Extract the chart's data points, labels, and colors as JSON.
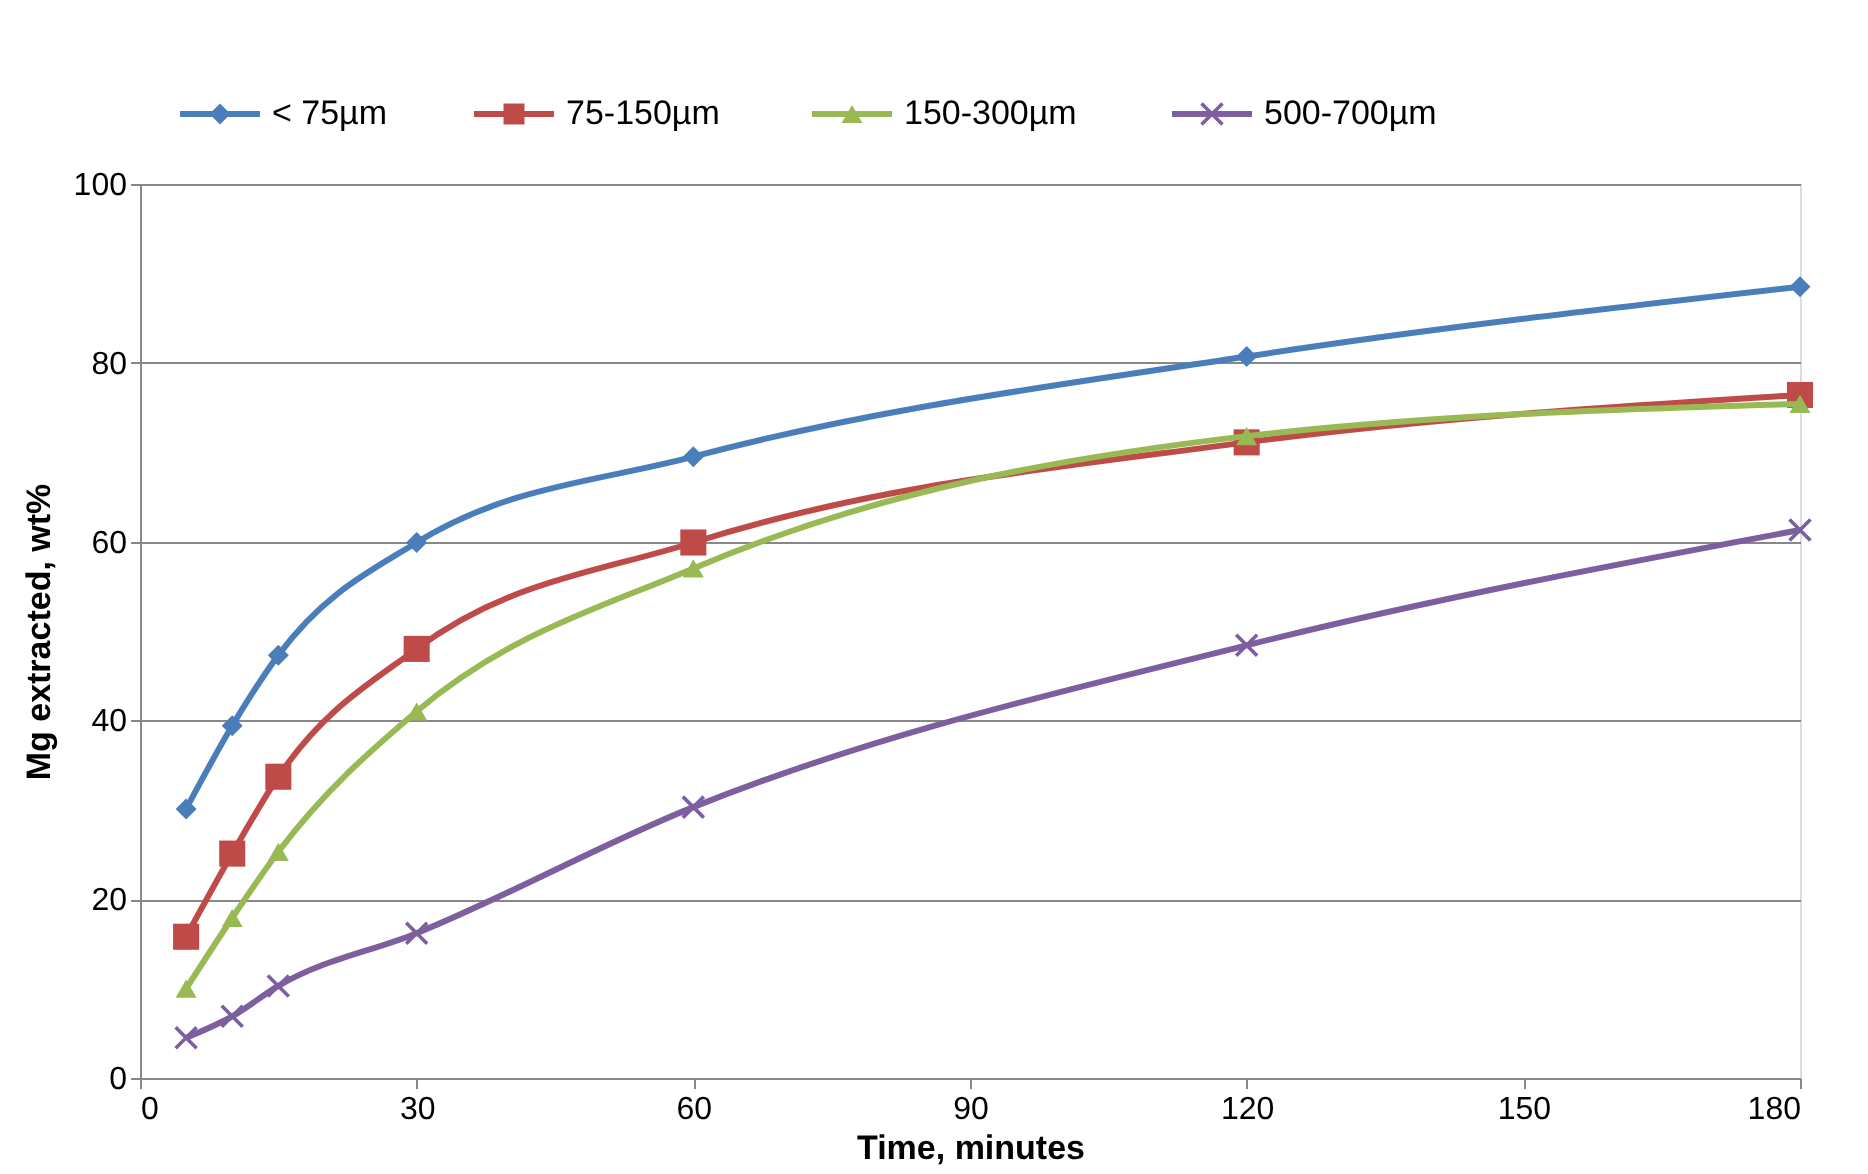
{
  "chart_data": {
    "type": "line",
    "xlabel": "Time, minutes",
    "ylabel": "Mg extracted, wt%",
    "x": [
      5,
      10,
      15,
      30,
      60,
      120,
      180
    ],
    "xlim": [
      0,
      180
    ],
    "xticks": [
      0,
      30,
      60,
      90,
      120,
      150,
      180
    ],
    "ylim": [
      0,
      100
    ],
    "yticks": [
      0,
      20,
      40,
      60,
      80,
      100
    ],
    "grid": "y",
    "legend": "top",
    "series": [
      {
        "name": "< 75µm",
        "color": "#4a7ebb",
        "marker": "diamond",
        "values": [
          30.1,
          39.4,
          47.3,
          59.9,
          69.5,
          80.7,
          88.5
        ]
      },
      {
        "name": "75-150µm",
        "color": "#be4b48",
        "marker": "square",
        "values": [
          15.8,
          25.1,
          33.7,
          48,
          59.9,
          71.1,
          76.4
        ]
      },
      {
        "name": "150-300µm",
        "color": "#98b954",
        "marker": "triangle",
        "values": [
          10,
          17.9,
          25.3,
          41,
          57,
          71.8,
          75.4
        ]
      },
      {
        "name": "500-700µm",
        "color": "#7d5fa0",
        "marker": "cross",
        "values": [
          4.5,
          6.9,
          10.3,
          16.2,
          30.3,
          48.4,
          61.3
        ]
      }
    ]
  }
}
